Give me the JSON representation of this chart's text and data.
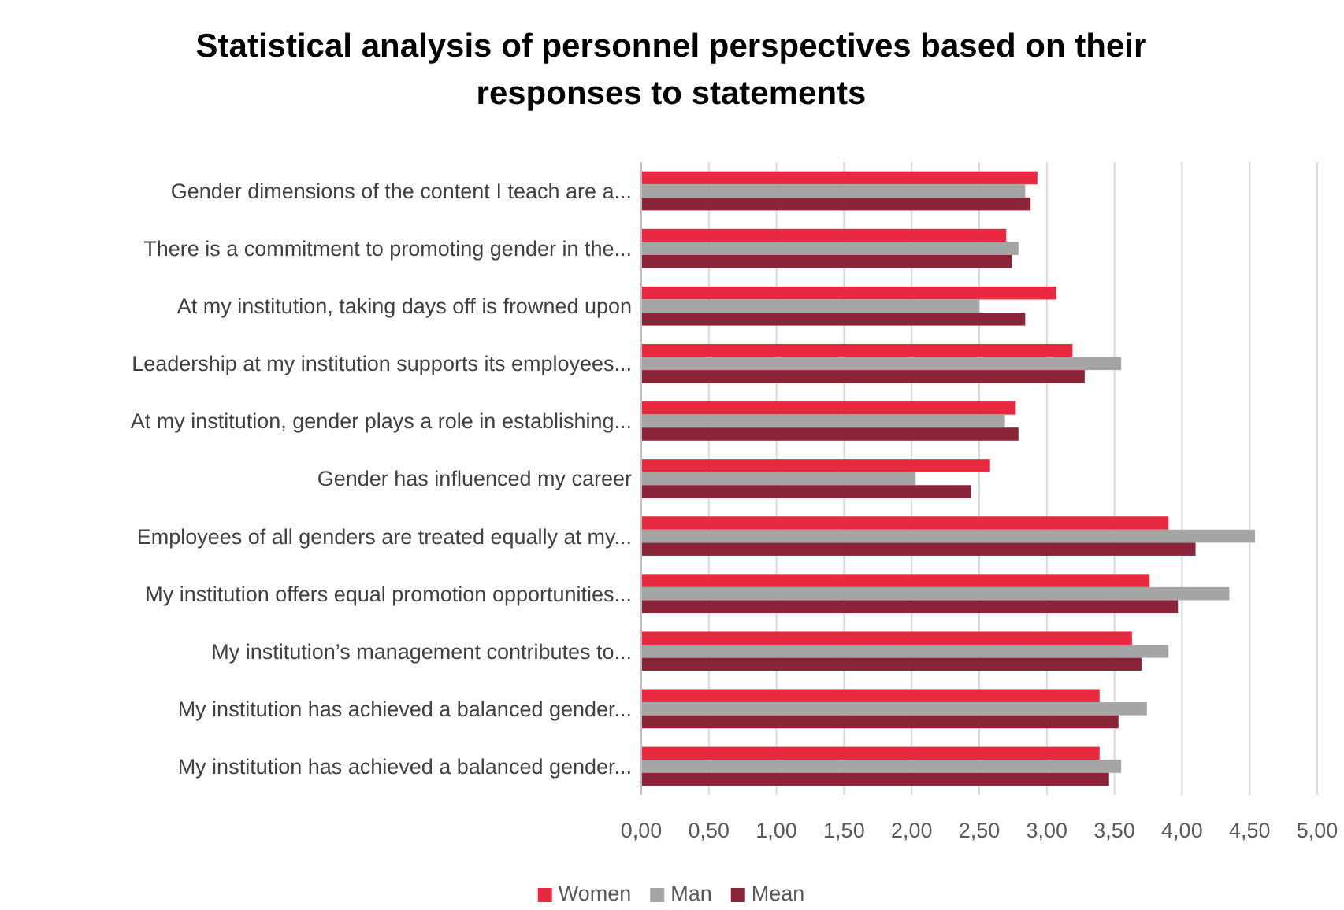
{
  "chart_data": {
    "type": "bar",
    "orientation": "horizontal",
    "title": "Statistical analysis of personnel perspectives based on their responses to statements",
    "categories": [
      "Gender dimensions of the content I teach are a...",
      "There is a commitment to promoting gender in the...",
      "At my institution, taking days off is frowned upon",
      "Leadership at my institution supports its employees...",
      "At my institution, gender plays a role in establishing...",
      "Gender has influenced my career",
      "Employees of all genders are treated equally at my...",
      "My institution offers equal promotion opportunities...",
      "My institution’s management contributes to...",
      "My institution has achieved a balanced gender...",
      "My institution has achieved a balanced gender..."
    ],
    "series": [
      {
        "name": "Women",
        "color": "#e8293f",
        "values": [
          2.93,
          2.7,
          3.07,
          3.19,
          2.77,
          2.58,
          3.9,
          3.76,
          3.63,
          3.39,
          3.39
        ]
      },
      {
        "name": "Man",
        "color": "#a5a5a5",
        "values": [
          2.84,
          2.79,
          2.5,
          3.55,
          2.69,
          2.03,
          4.54,
          4.35,
          3.9,
          3.74,
          3.55
        ]
      },
      {
        "name": "Mean",
        "color": "#8b2339",
        "values": [
          2.88,
          2.74,
          2.84,
          3.28,
          2.79,
          2.44,
          4.1,
          3.97,
          3.7,
          3.53,
          3.46
        ]
      }
    ],
    "xlim": [
      0,
      5
    ],
    "xticks": [
      {
        "value": 0,
        "label": "0,00"
      },
      {
        "value": 0.5,
        "label": "0,50"
      },
      {
        "value": 1,
        "label": "1,00"
      },
      {
        "value": 1.5,
        "label": "1,50"
      },
      {
        "value": 2,
        "label": "2,00"
      },
      {
        "value": 2.5,
        "label": "2,50"
      },
      {
        "value": 3,
        "label": "3,00"
      },
      {
        "value": 3.5,
        "label": "3,50"
      },
      {
        "value": 4,
        "label": "4,00"
      },
      {
        "value": 4.5,
        "label": "4,50"
      },
      {
        "value": 5,
        "label": "5,00"
      }
    ],
    "grid": "x",
    "legend": "bottom"
  }
}
